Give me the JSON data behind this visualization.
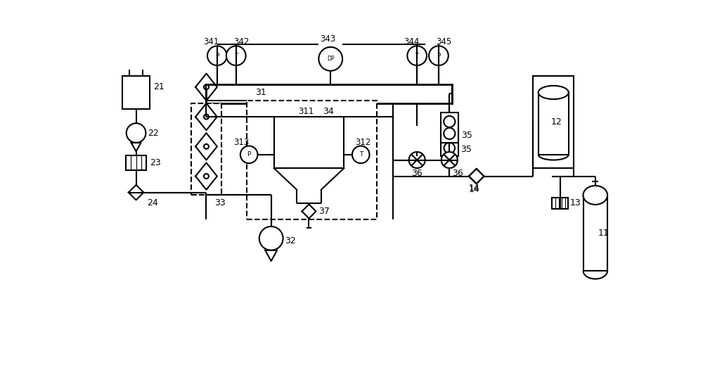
{
  "bg_color": "#ffffff",
  "lc": "#000000",
  "lw": 1.5,
  "fig_width": 10.0,
  "fig_height": 5.19,
  "dpi": 100,
  "xlim": [
    0,
    100
  ],
  "ylim": [
    0,
    52
  ]
}
